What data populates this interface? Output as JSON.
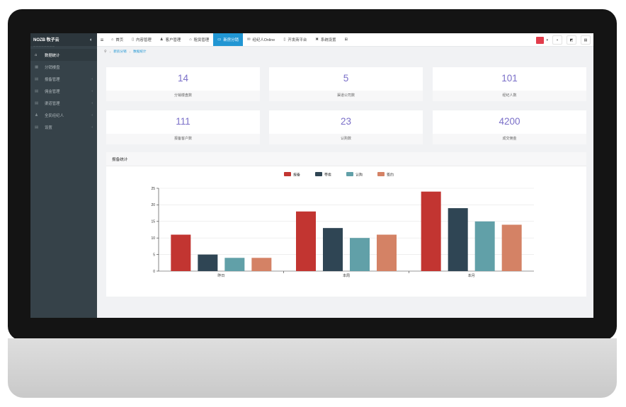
{
  "app": {
    "logo": "NOZB 牧子云",
    "logo_sub": "— — — — — — — —"
  },
  "sidebar": {
    "items": [
      {
        "label": "数据统计",
        "icon": "home-icon",
        "glyph": "⌂",
        "active": true,
        "chevron": false
      },
      {
        "label": "分销楼盘",
        "icon": "building-icon",
        "glyph": "▦",
        "active": false,
        "chevron": false
      },
      {
        "label": "报备管理",
        "icon": "list-icon",
        "glyph": "▤",
        "active": false,
        "chevron": true
      },
      {
        "label": "佣金管理",
        "icon": "money-icon",
        "glyph": "▤",
        "active": false,
        "chevron": true
      },
      {
        "label": "渠道管理",
        "icon": "channel-icon",
        "glyph": "▤",
        "active": false,
        "chevron": true
      },
      {
        "label": "全民经纪人",
        "icon": "users-icon",
        "glyph": "♟",
        "active": false,
        "chevron": true
      },
      {
        "label": "设置",
        "icon": "settings-icon",
        "glyph": "▤",
        "active": false,
        "chevron": true
      }
    ]
  },
  "topnav": {
    "items": [
      {
        "label": "首页",
        "icon": "home-icon",
        "glyph": "⌂",
        "active": false
      },
      {
        "label": "内容管理",
        "icon": "file-icon",
        "glyph": "▯",
        "active": false
      },
      {
        "label": "客户管理",
        "icon": "user-plus-icon",
        "glyph": "♟",
        "active": false
      },
      {
        "label": "租赁管理",
        "icon": "home-icon",
        "glyph": "⌂",
        "active": false
      },
      {
        "label": "新房分销",
        "icon": "chat-icon",
        "glyph": "▭",
        "active": true
      },
      {
        "label": "经纪人Online",
        "icon": "mail-icon",
        "glyph": "✉",
        "active": false
      },
      {
        "label": "开发商平台",
        "icon": "file-icon",
        "glyph": "▯",
        "active": false
      },
      {
        "label": "系统设置",
        "icon": "wrench-icon",
        "glyph": "✖",
        "active": false
      },
      {
        "label": "",
        "icon": "grid-icon",
        "glyph": "⊞",
        "active": false
      }
    ]
  },
  "breadcrumb": {
    "items": [
      "新房分销",
      "数据统计"
    ]
  },
  "stats": [
    {
      "value": "14",
      "label": "分销楼盘数"
    },
    {
      "value": "5",
      "label": "渠道公司数"
    },
    {
      "value": "101",
      "label": "经纪人数"
    },
    {
      "value": "111",
      "label": "报备客户数"
    },
    {
      "value": "23",
      "label": "认购数"
    },
    {
      "value": "4200",
      "label": "成交佣金"
    }
  ],
  "panel": {
    "title": "报备统计"
  },
  "chart_data": {
    "type": "bar",
    "categories": [
      "昨日",
      "本周",
      "本月"
    ],
    "series": [
      {
        "name": "报备",
        "color": "#c23531",
        "values": [
          11,
          18,
          24
        ]
      },
      {
        "name": "带看",
        "color": "#2f4554",
        "values": [
          5,
          13,
          19
        ]
      },
      {
        "name": "认购",
        "color": "#61a0a8",
        "values": [
          4,
          10,
          15
        ]
      },
      {
        "name": "签约",
        "color": "#d48265",
        "values": [
          4,
          11,
          14
        ]
      }
    ],
    "ylim": [
      0,
      25
    ],
    "yticks": [
      0,
      5,
      10,
      15,
      20,
      25
    ],
    "grid": true,
    "legend_position": "top-center"
  }
}
